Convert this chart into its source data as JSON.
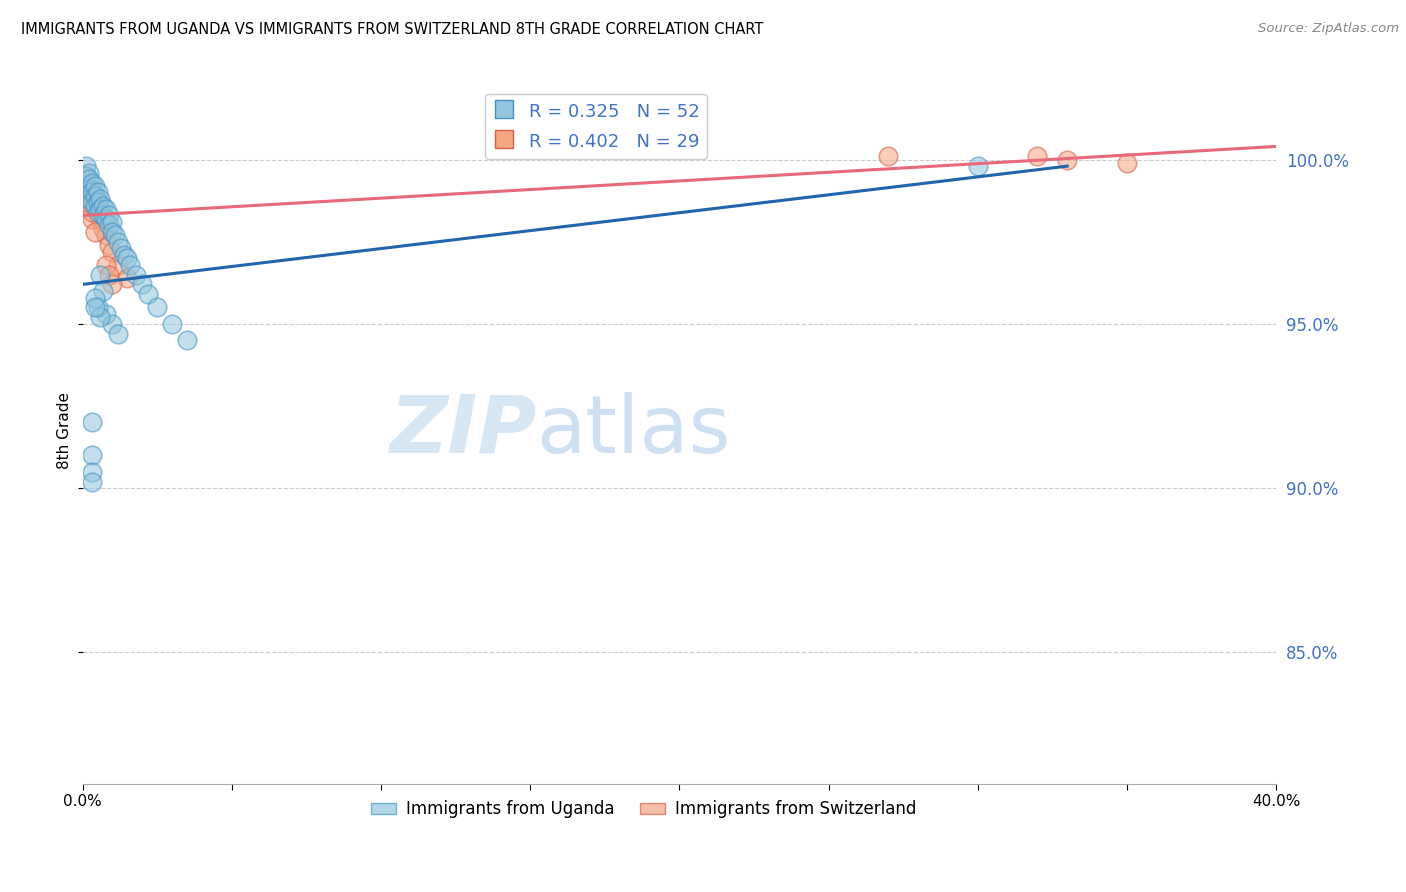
{
  "title": "IMMIGRANTS FROM UGANDA VS IMMIGRANTS FROM SWITZERLAND 8TH GRADE CORRELATION CHART",
  "source": "Source: ZipAtlas.com",
  "ylabel": "8th Grade",
  "xlim": [
    0.0,
    0.4
  ],
  "ylim": [
    81.0,
    102.5
  ],
  "watermark_zip": "ZIP",
  "watermark_atlas": "atlas",
  "uganda_color": "#92c5de",
  "switzerland_color": "#f4a582",
  "uganda_edge_color": "#4393c3",
  "switzerland_edge_color": "#d6604d",
  "uganda_line_color": "#2166ac",
  "switzerland_line_color": "#e8697a",
  "yticks": [
    85.0,
    90.0,
    95.0,
    100.0
  ],
  "uganda_scatter_x": [
    0.001,
    0.001,
    0.001,
    0.002,
    0.002,
    0.002,
    0.002,
    0.003,
    0.003,
    0.003,
    0.004,
    0.004,
    0.004,
    0.005,
    0.005,
    0.005,
    0.006,
    0.006,
    0.007,
    0.007,
    0.008,
    0.008,
    0.009,
    0.009,
    0.01,
    0.01,
    0.011,
    0.012,
    0.013,
    0.014,
    0.015,
    0.016,
    0.018,
    0.02,
    0.022,
    0.025,
    0.03,
    0.035,
    0.008,
    0.01,
    0.012,
    0.006,
    0.007,
    0.005,
    0.006,
    0.004,
    0.004,
    0.003,
    0.003,
    0.003,
    0.003,
    0.3
  ],
  "uganda_scatter_y": [
    99.8,
    99.5,
    99.2,
    99.6,
    99.4,
    99.1,
    98.8,
    99.3,
    99.0,
    98.7,
    99.2,
    98.9,
    98.6,
    99.0,
    98.7,
    98.4,
    98.8,
    98.5,
    98.6,
    98.3,
    98.5,
    98.2,
    98.3,
    98.0,
    98.1,
    97.8,
    97.7,
    97.5,
    97.3,
    97.1,
    97.0,
    96.8,
    96.5,
    96.2,
    95.9,
    95.5,
    95.0,
    94.5,
    95.3,
    95.0,
    94.7,
    96.5,
    96.0,
    95.5,
    95.2,
    95.8,
    95.5,
    92.0,
    91.0,
    90.5,
    90.2,
    99.8
  ],
  "switzerland_scatter_x": [
    0.001,
    0.001,
    0.002,
    0.002,
    0.003,
    0.003,
    0.004,
    0.004,
    0.005,
    0.006,
    0.007,
    0.008,
    0.009,
    0.01,
    0.012,
    0.015,
    0.008,
    0.009,
    0.01,
    0.003,
    0.004,
    0.002,
    0.003,
    0.001,
    0.001,
    0.27,
    0.32,
    0.33,
    0.35
  ],
  "switzerland_scatter_y": [
    99.5,
    99.2,
    99.3,
    99.0,
    99.1,
    98.8,
    98.9,
    98.6,
    98.4,
    98.2,
    97.9,
    97.7,
    97.4,
    97.2,
    96.8,
    96.4,
    96.8,
    96.5,
    96.2,
    98.2,
    97.8,
    98.7,
    98.4,
    99.0,
    98.7,
    100.1,
    100.1,
    100.0,
    99.9
  ],
  "uganda_trendline_x0": 0.0,
  "uganda_trendline_x1": 0.33,
  "uganda_trendline_y0": 96.2,
  "uganda_trendline_y1": 99.8,
  "switzerland_trendline_x0": 0.0,
  "switzerland_trendline_x1": 0.4,
  "switzerland_trendline_y0": 98.3,
  "switzerland_trendline_y1": 100.4,
  "legend_r_uganda": "R = 0.325",
  "legend_n_uganda": "N = 52",
  "legend_r_switzerland": "R = 0.402",
  "legend_n_switzerland": "N = 29",
  "bottom_legend_uganda": "Immigrants from Uganda",
  "bottom_legend_switzerland": "Immigrants from Switzerland"
}
